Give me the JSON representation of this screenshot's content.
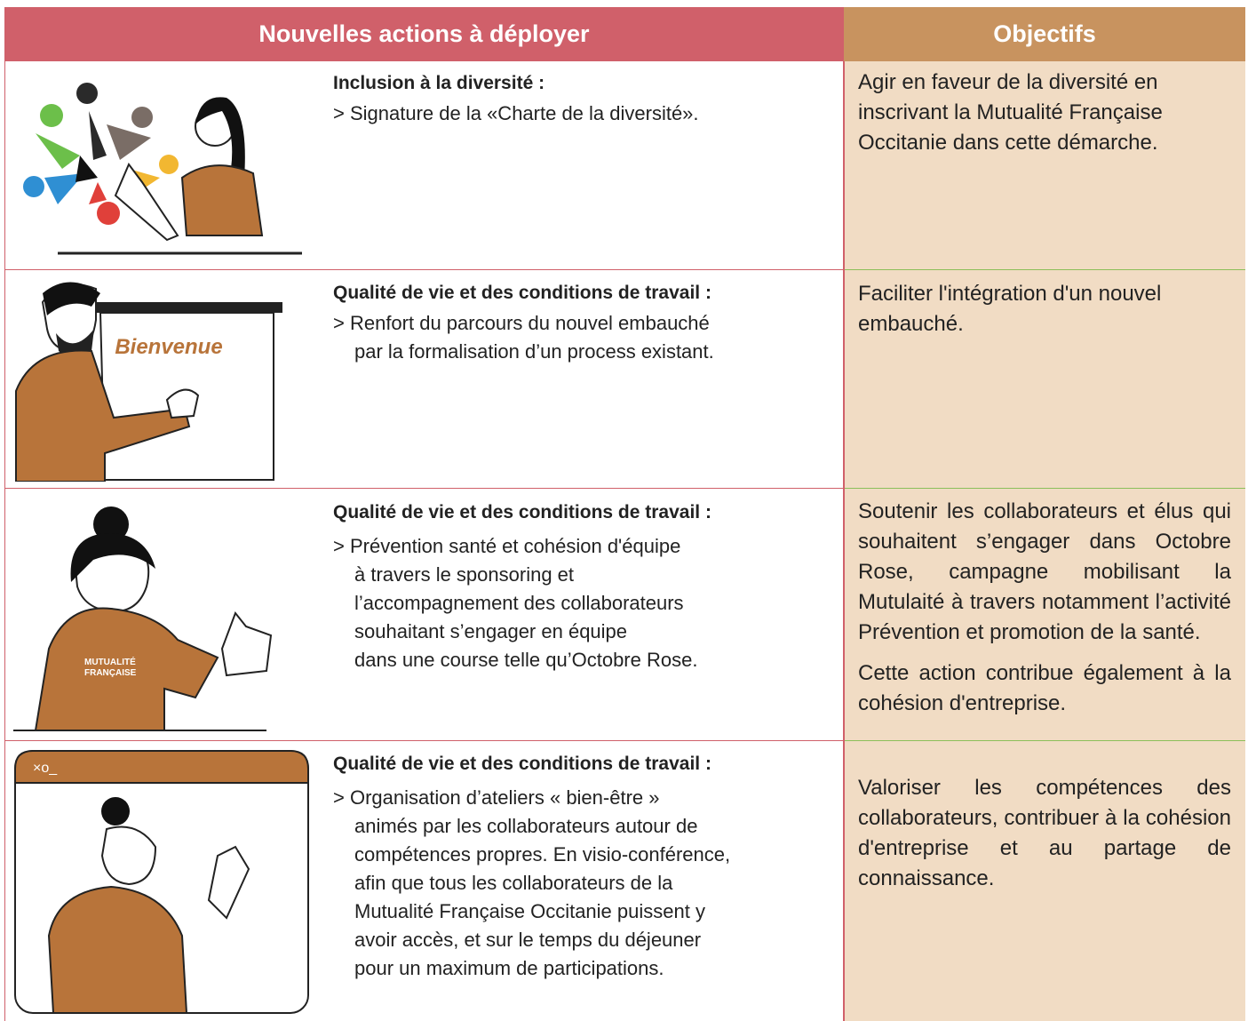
{
  "table": {
    "header": [
      "Nouvelles actions à déployer",
      "Objectifs"
    ],
    "rows": [
      {
        "title": "Inclusion à la diversité :",
        "lines": [
          "> Signature de la «Charte de la diversité»."
        ],
        "objective": [
          "Agir en faveur de la diversité en inscrivant la Mutualité Française Occitanie dans cette démarche."
        ]
      },
      {
        "title": "Qualité de vie et des conditions de travail :",
        "image_text": "Bienvenue",
        "lines": [
          "> Renfort du parcours du nouvel embauché",
          "par la formalisation d’un process existant."
        ],
        "objective": [
          "Faciliter l'intégration d'un nouvel embauché."
        ]
      },
      {
        "title": "Qualité de vie et des conditions de travail :",
        "image_text": [
          "MUTUALITÉ",
          "FRANÇAISE"
        ],
        "lines": [
          "> Prévention santé et cohésion d'équipe",
          "à travers le sponsoring et",
          "l’accompagnement des collaborateurs",
          "souhaitant s’engager en équipe",
          "dans une course telle qu’Octobre Rose."
        ],
        "objective": [
          "Soutenir les collaborateurs et élus qui souhaitent s’engager dans Octobre Rose, campagne mobilisant la Mutulaité à travers notamment l’activité Prévention et promotion de la santé.",
          "Cette action contribue également à la cohésion d'entreprise."
        ]
      },
      {
        "title": "Qualité de vie et des conditions de travail :",
        "image_text": "×o_",
        "lines": [
          "> Organisation d’ateliers « bien-être »",
          "animés par les collaborateurs autour de",
          "compétences propres. En visio-conférence,",
          "afin que tous les collaborateurs de la",
          "Mutualité Française Occitanie puissent y",
          "avoir accès, et sur le temps du déjeuner",
          "pour un maximum de participations."
        ],
        "objective": [
          "Valoriser les compétences des collaborateurs, contribuer à la cohésion d'entreprise et au partage de connaissance."
        ]
      }
    ]
  }
}
